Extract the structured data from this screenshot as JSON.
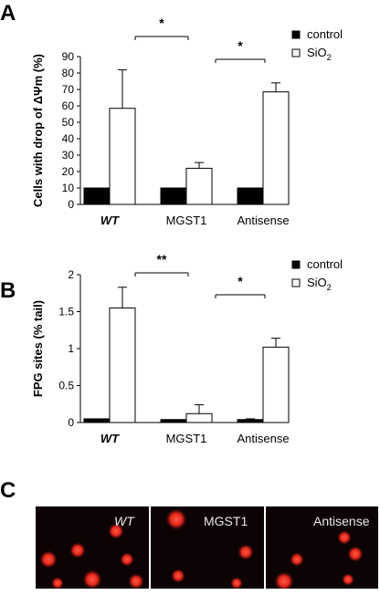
{
  "panels": {
    "a": "A",
    "b": "B",
    "c": "C"
  },
  "colors": {
    "control": "#000000",
    "sio2": "#ffffff",
    "stroke": "#000000",
    "cell": "#e0241a",
    "background": "#0d0304"
  },
  "chart_data": [
    {
      "type": "bar",
      "ylabel": "Cells with drop of ΔΨm (%)",
      "ylim": [
        0,
        90
      ],
      "yticks": [
        0,
        10,
        20,
        30,
        40,
        50,
        60,
        70,
        80,
        90
      ],
      "ytick_labels": [
        "0",
        "10",
        "20",
        "30",
        "40",
        "50",
        "60",
        "70",
        "80",
        "90"
      ],
      "categories": [
        "WT",
        "MGST1",
        "Antisense"
      ],
      "italic_categories": [
        "WT"
      ],
      "series": [
        {
          "name": "control",
          "values": [
            10,
            10,
            10
          ],
          "errors": [
            0,
            0,
            0
          ]
        },
        {
          "name": "SiO2",
          "values": [
            58.5,
            22,
            68.5
          ],
          "errors": [
            23.5,
            3.5,
            5.5
          ]
        }
      ],
      "legend_position": "top-right",
      "significance": [
        {
          "from": "WT",
          "to": "MGST1",
          "label": "*"
        },
        {
          "from": "MGST1",
          "to": "Antisense",
          "label": "*"
        }
      ]
    },
    {
      "type": "bar",
      "ylabel": "FPG sites (% tail)",
      "ylim": [
        0,
        2
      ],
      "yticks": [
        0,
        0.5,
        1,
        1.5,
        2
      ],
      "ytick_labels": [
        "0",
        "0.5",
        "1",
        "1.5",
        "2"
      ],
      "categories": [
        "WT",
        "MGST1",
        "Antisense"
      ],
      "italic_categories": [
        "WT"
      ],
      "series": [
        {
          "name": "control",
          "values": [
            0.05,
            0.04,
            0.04
          ],
          "errors": [
            0,
            0,
            0.01
          ]
        },
        {
          "name": "SiO2",
          "values": [
            1.55,
            0.12,
            1.02
          ],
          "errors": [
            0.28,
            0.12,
            0.12
          ]
        }
      ],
      "legend_position": "top-right",
      "significance": [
        {
          "from": "WT",
          "to": "MGST1",
          "label": "**"
        },
        {
          "from": "MGST1",
          "to": "Antisense",
          "label": "*"
        }
      ]
    }
  ],
  "micrographs": [
    {
      "label": "WT",
      "italic": true
    },
    {
      "label": "MGST1",
      "italic": false
    },
    {
      "label": "Antisense",
      "italic": false
    }
  ]
}
